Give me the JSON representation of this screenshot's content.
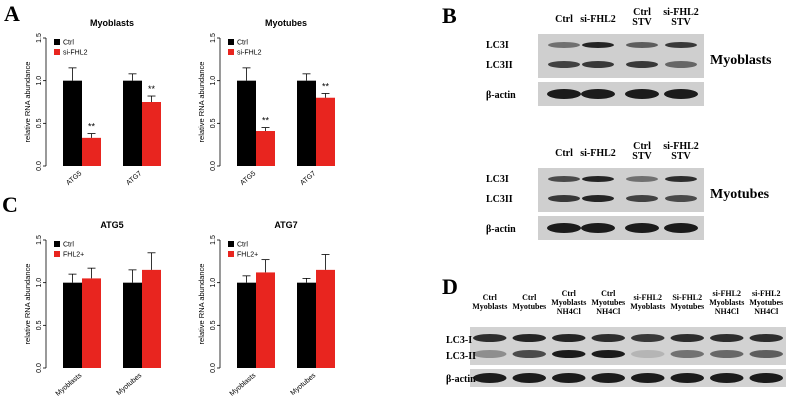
{
  "panels": {
    "A": "A",
    "B": "B",
    "C": "C",
    "D": "D"
  },
  "colors": {
    "ctrl": "#000000",
    "treatment": "#e8251f"
  },
  "chart_data": [
    {
      "type": "bar",
      "title": "Myoblasts",
      "categories": [
        "ATG5",
        "ATG7"
      ],
      "series": [
        {
          "name": "Ctrl",
          "values": [
            1.0,
            1.0
          ],
          "errors": [
            0.15,
            0.08
          ]
        },
        {
          "name": "si-FHL2",
          "values": [
            0.33,
            0.75
          ],
          "errors": [
            0.05,
            0.07
          ]
        }
      ],
      "significance": [
        {
          "series": 1,
          "category": 0,
          "label": "**"
        },
        {
          "series": 1,
          "category": 1,
          "label": "**"
        }
      ],
      "ylabel": "relative RNA abundance",
      "ylim": [
        0,
        1.5
      ],
      "yticks": [
        "0.0",
        "0.5",
        "1.0",
        "1.5"
      ]
    },
    {
      "type": "bar",
      "title": "Myotubes",
      "categories": [
        "ATG5",
        "ATG7"
      ],
      "series": [
        {
          "name": "Ctrl",
          "values": [
            1.0,
            1.0
          ],
          "errors": [
            0.15,
            0.08
          ]
        },
        {
          "name": "si-FHL2",
          "values": [
            0.41,
            0.8
          ],
          "errors": [
            0.04,
            0.05
          ]
        }
      ],
      "significance": [
        {
          "series": 1,
          "category": 0,
          "label": "**"
        },
        {
          "series": 1,
          "category": 1,
          "label": "**"
        }
      ],
      "ylabel": "relative RNA abundance",
      "ylim": [
        0,
        1.5
      ],
      "yticks": [
        "0.0",
        "0.5",
        "1.0",
        "1.5"
      ]
    },
    {
      "type": "bar",
      "title": "ATG5",
      "categories": [
        "Myoblasts",
        "Myotubes"
      ],
      "series": [
        {
          "name": "Ctrl",
          "values": [
            1.0,
            1.0
          ],
          "errors": [
            0.1,
            0.15
          ]
        },
        {
          "name": "FHL2+",
          "values": [
            1.05,
            1.15
          ],
          "errors": [
            0.12,
            0.2
          ]
        }
      ],
      "significance": [],
      "ylabel": "relative RNA abundance",
      "ylim": [
        0,
        1.5
      ],
      "yticks": [
        "0.0",
        "0.5",
        "1.0",
        "1.5"
      ]
    },
    {
      "type": "bar",
      "title": "ATG7",
      "categories": [
        "Myoblasts",
        "Myotubes"
      ],
      "series": [
        {
          "name": "Ctrl",
          "values": [
            1.0,
            1.0
          ],
          "errors": [
            0.08,
            0.05
          ]
        },
        {
          "name": "FHL2+",
          "values": [
            1.12,
            1.15
          ],
          "errors": [
            0.15,
            0.18
          ]
        }
      ],
      "significance": [],
      "ylabel": "relative RNA abundance",
      "ylim": [
        0,
        1.5
      ],
      "yticks": [
        "0.0",
        "0.5",
        "1.0",
        "1.5"
      ]
    }
  ],
  "blots": {
    "myoblasts": {
      "columns": [
        [
          "Ctrl"
        ],
        [
          "si-FHL2"
        ],
        [
          "Ctrl",
          "STV"
        ],
        [
          "si-FHL2",
          "STV"
        ]
      ],
      "rows": [
        "LC3I",
        "LC3II",
        "β-actin"
      ],
      "label": "Myoblasts"
    },
    "myotubes": {
      "columns": [
        [
          "Ctrl"
        ],
        [
          "si-FHL2"
        ],
        [
          "Ctrl",
          "STV"
        ],
        [
          "si-FHL2",
          "STV"
        ]
      ],
      "rows": [
        "LC3I",
        "LC3II",
        "β-actin"
      ],
      "label": "Myotubes"
    },
    "panelD": {
      "columns": [
        [
          "Ctrl",
          "Myoblasts"
        ],
        [
          "Ctrl",
          "Myotubes"
        ],
        [
          "Ctrl",
          "Myoblasts",
          "NH4Cl"
        ],
        [
          "Ctrl",
          "Myotubes",
          "NH4Cl"
        ],
        [
          "si-FHL2",
          "Myoblasts"
        ],
        [
          "Si-FHL2",
          "Myotubes"
        ],
        [
          "si-FHL2",
          "Myoblasts",
          "NH4Cl"
        ],
        [
          "si-FHL2",
          "Myotubes",
          "NH4Cl"
        ]
      ],
      "rows": [
        "LC3-I",
        "LC3-II",
        "β-actin"
      ]
    }
  }
}
